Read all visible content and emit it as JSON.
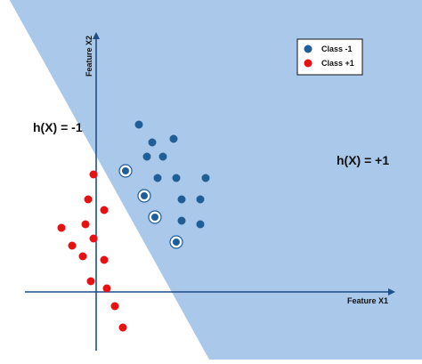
{
  "chart_data": {
    "type": "scatter",
    "title": "",
    "xlabel": "Feature X1",
    "ylabel": "Feature X2",
    "xlim": [
      -10,
      40
    ],
    "ylim": [
      -8,
      35
    ],
    "grid": false,
    "legend_position": "top-right",
    "colors": {
      "region_positive": "#a9c8ea",
      "region_negative": "#ffffff",
      "class_minus_1": "#1f5f99",
      "class_plus_1": "#e81010",
      "support_ring": "#ffffff"
    },
    "regions": [
      {
        "label": "h(X) = -1",
        "side": "left of decision boundary"
      },
      {
        "label": "h(X) = +1",
        "side": "right of decision boundary"
      }
    ],
    "decision_boundary": {
      "points": [
        [
          -14,
          38
        ],
        [
          23,
          -12
        ]
      ]
    },
    "series": [
      {
        "name": "Class -1",
        "marker": "circle",
        "points": [
          [
            8,
            23.5
          ],
          [
            10.5,
            21
          ],
          [
            14.5,
            21.5
          ],
          [
            9.5,
            19
          ],
          [
            12.5,
            19
          ],
          [
            5.5,
            17
          ],
          [
            11.5,
            16
          ],
          [
            15,
            16
          ],
          [
            20.5,
            16
          ],
          [
            9,
            13.5
          ],
          [
            16,
            13
          ],
          [
            19.5,
            13
          ],
          [
            11,
            10.5
          ],
          [
            16,
            10
          ],
          [
            19.5,
            9.5
          ],
          [
            15,
            7
          ]
        ],
        "support_vectors": [
          [
            5.5,
            17
          ],
          [
            9,
            13.5
          ],
          [
            11,
            10.5
          ],
          [
            15,
            7
          ]
        ]
      },
      {
        "name": "Class +1",
        "marker": "circle",
        "points": [
          [
            -0.5,
            16.5
          ],
          [
            -1.5,
            13
          ],
          [
            1.5,
            11.5
          ],
          [
            -2,
            9.5
          ],
          [
            -6.5,
            9
          ],
          [
            -0.5,
            7.5
          ],
          [
            -4.5,
            6.5
          ],
          [
            -2.5,
            5
          ],
          [
            1.5,
            4.5
          ],
          [
            -1,
            1.5
          ],
          [
            2,
            0.5
          ],
          [
            3.5,
            -2
          ],
          [
            5,
            -5
          ]
        ]
      }
    ]
  }
}
